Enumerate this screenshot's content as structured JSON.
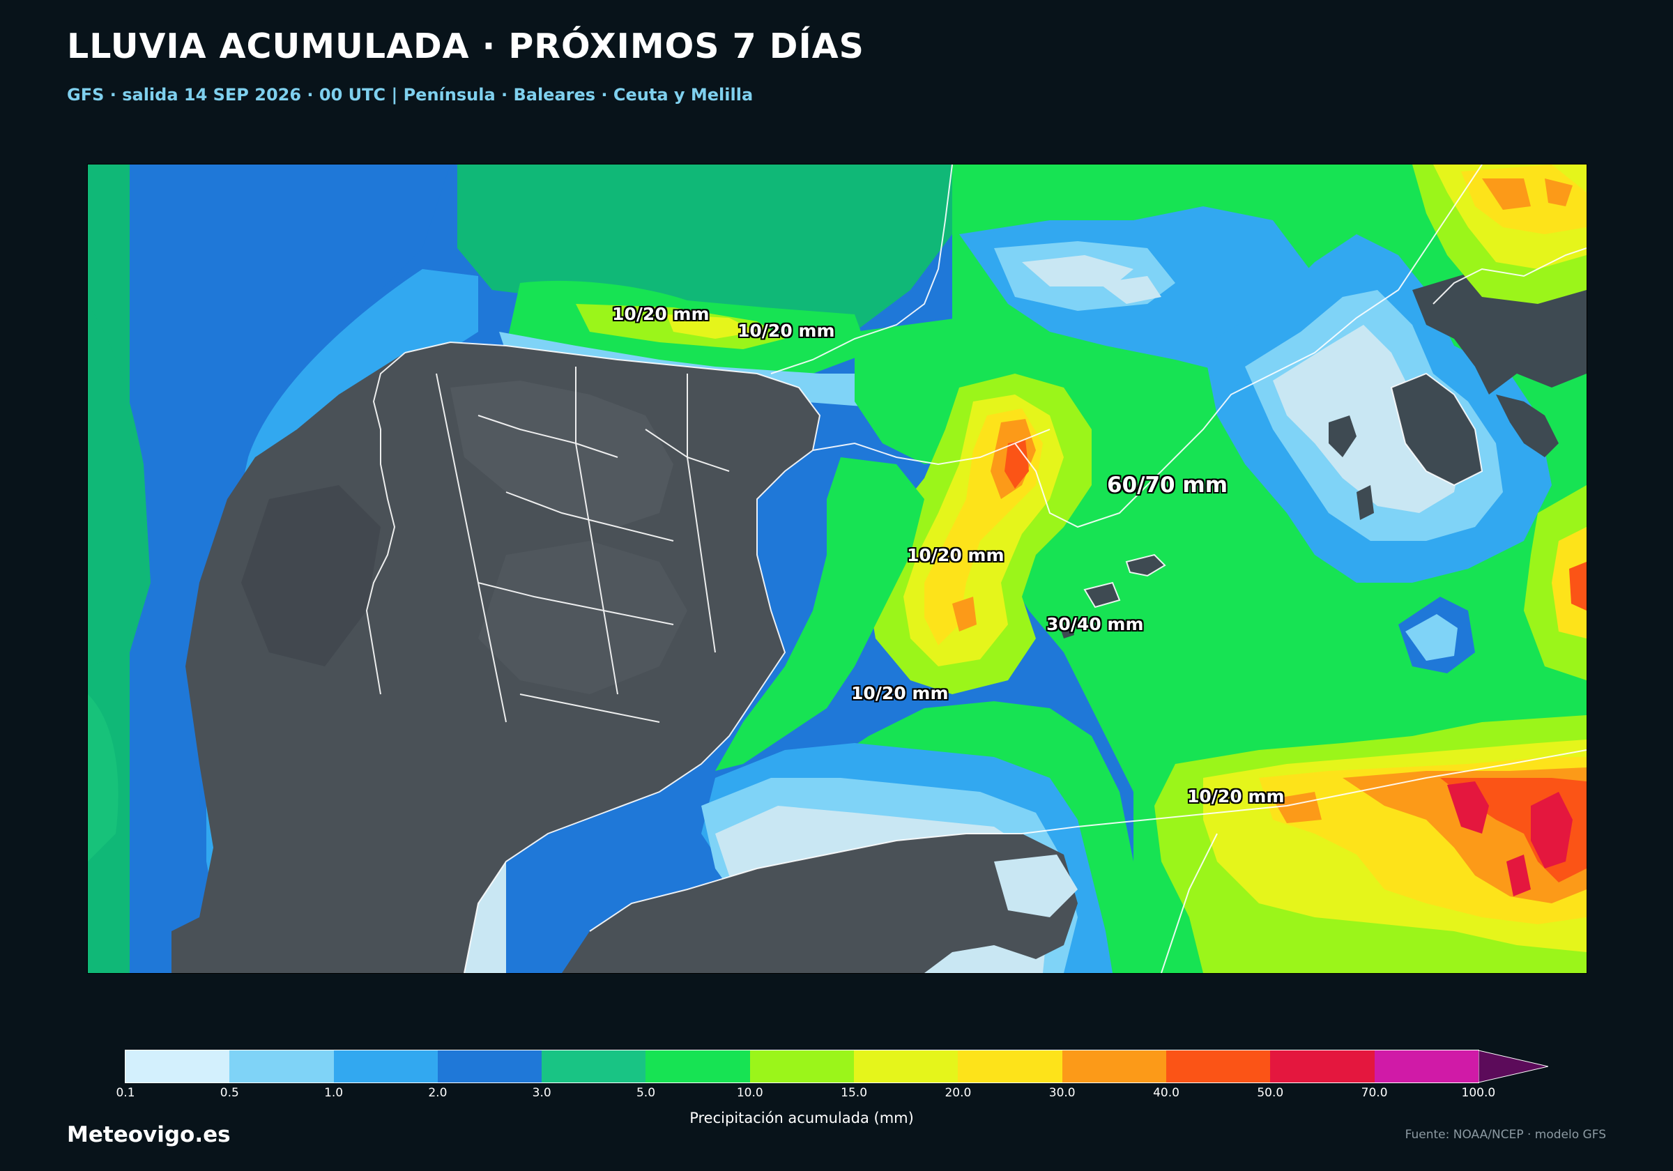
{
  "header": {
    "title": "LLUVIA ACUMULADA · PRÓXIMOS 7 DÍAS",
    "subtitle": "GFS · salida 14 SEP 2026 · 00 UTC  |  Península · Baleares · Ceuta y Melilla"
  },
  "map": {
    "labels": [
      {
        "text": "10/20 mm"
      },
      {
        "text": "10/20 mm"
      },
      {
        "text": "60/70 mm"
      },
      {
        "text": "10/20 mm"
      },
      {
        "text": "30/40 mm"
      },
      {
        "text": "10/20 mm"
      },
      {
        "text": "10/20 mm"
      }
    ]
  },
  "colorbar": {
    "ticks": [
      "0.1",
      "0.5",
      "1.0",
      "2.0",
      "3.0",
      "5.0",
      "10.0",
      "15.0",
      "20.0",
      "30.0",
      "40.0",
      "50.0",
      "70.0",
      "100.0"
    ],
    "colors": [
      "#d3f0fd",
      "#7fd3f7",
      "#32a8f0",
      "#1f78d8",
      "#19c484",
      "#17e353",
      "#9bf51a",
      "#e5f51b",
      "#fde31a",
      "#fc9a18",
      "#fb5416",
      "#e4173e",
      "#d01aa7"
    ],
    "extend_color": "#5c0b5a",
    "label": "Precipitación acumulada (mm)"
  },
  "footer": {
    "brand": "Meteovigo.es",
    "source": "Fuente: NOAA/NCEP · modelo GFS"
  }
}
